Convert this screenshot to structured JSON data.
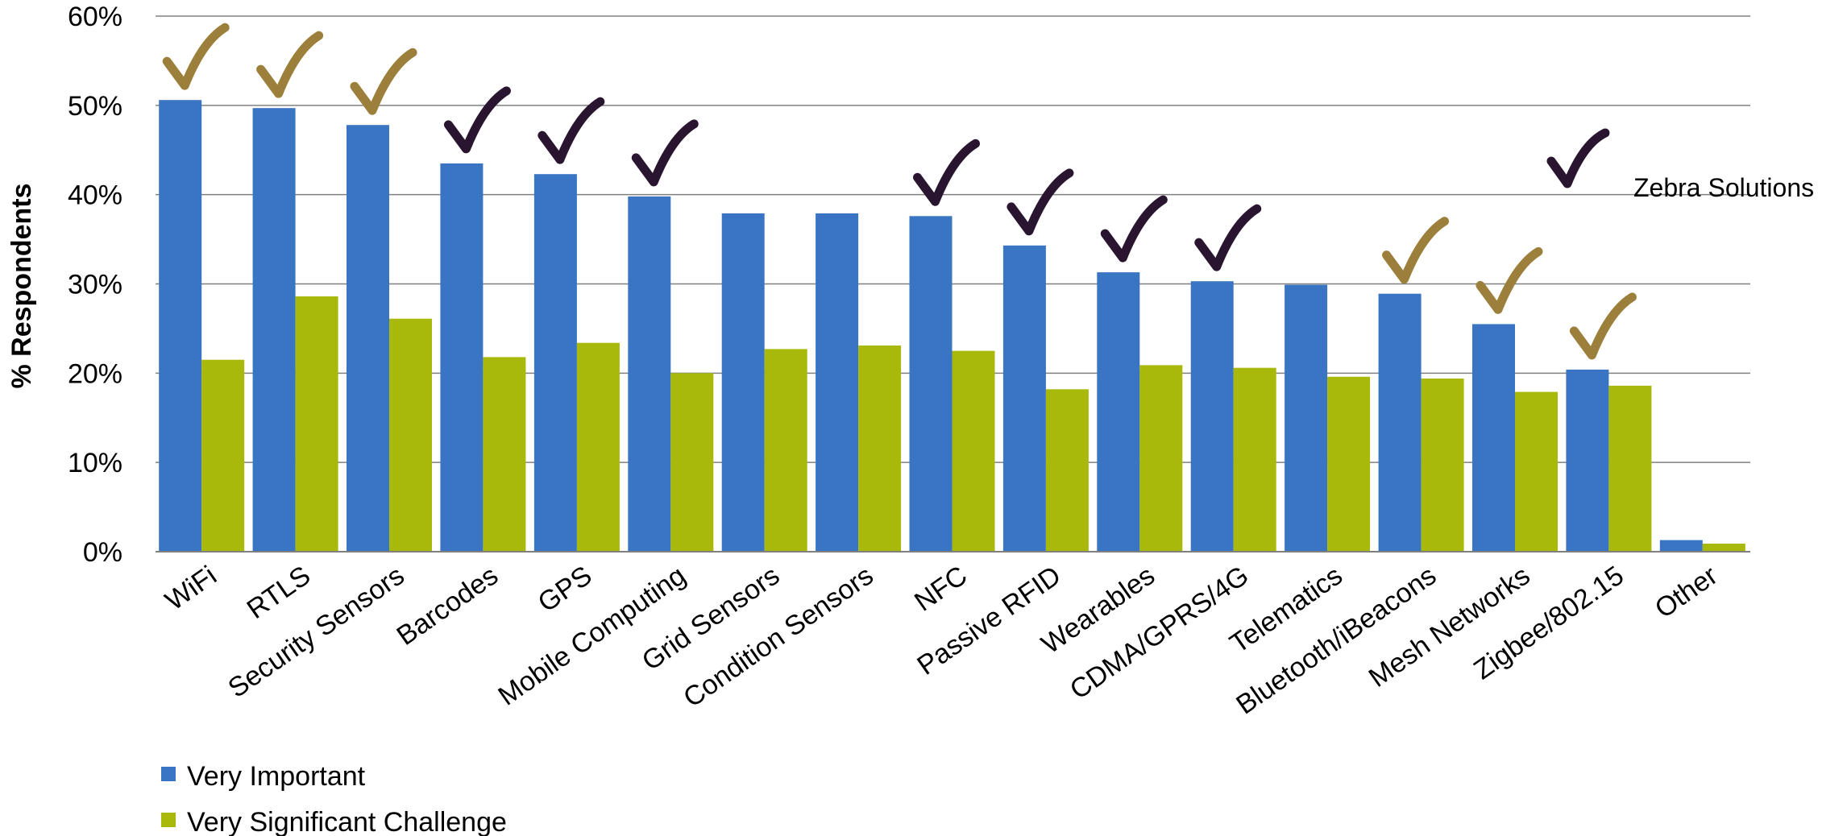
{
  "chart_data": {
    "type": "bar",
    "ylabel": "% Respondents",
    "ylim": [
      0,
      60
    ],
    "yticks": [
      "0%",
      "10%",
      "20%",
      "30%",
      "40%",
      "50%",
      "60%"
    ],
    "grid": true,
    "legend_placement": "bottom-left",
    "annotation": "Zebra Solutions",
    "categories": [
      "WiFi",
      "RTLS",
      "Security Sensors",
      "Barcodes",
      "GPS",
      "Mobile Computing",
      "Grid Sensors",
      "Condition Sensors",
      "NFC",
      "Passive RFID",
      "Wearables",
      "CDMA/GPRS/4G",
      "Telematics",
      "Bluetooth/iBeacons",
      "Mesh Networks",
      "Zigbee/802.15",
      "Other"
    ],
    "series": [
      {
        "name": "Very Important",
        "color": "#3A75C4",
        "values": [
          50.6,
          49.7,
          47.8,
          43.5,
          42.3,
          39.8,
          37.9,
          37.9,
          37.6,
          34.3,
          31.3,
          30.3,
          29.9,
          28.9,
          25.5,
          20.4,
          1.3
        ]
      },
      {
        "name": "Very Significant Challenge",
        "color": "#A9B90B",
        "values": [
          21.5,
          28.6,
          26.1,
          21.8,
          23.4,
          20.0,
          22.7,
          23.1,
          22.5,
          18.2,
          20.9,
          20.6,
          19.6,
          19.4,
          17.9,
          18.6,
          0.9
        ]
      }
    ],
    "checkmarks": [
      {
        "category": "WiFi",
        "color": "#9C7F3A"
      },
      {
        "category": "RTLS",
        "color": "#9C7F3A"
      },
      {
        "category": "Security Sensors",
        "color": "#9C7F3A"
      },
      {
        "category": "Barcodes",
        "color": "#2A1530"
      },
      {
        "category": "GPS",
        "color": "#2A1530"
      },
      {
        "category": "Mobile Computing",
        "color": "#2A1530"
      },
      {
        "category": "NFC",
        "color": "#2A1530"
      },
      {
        "category": "Passive RFID",
        "color": "#2A1530"
      },
      {
        "category": "Wearables",
        "color": "#2A1530"
      },
      {
        "category": "CDMA/GPRS/4G",
        "color": "#2A1530"
      },
      {
        "category": "Bluetooth/iBeacons",
        "color": "#9C7F3A"
      },
      {
        "category": "Mesh Networks",
        "color": "#9C7F3A"
      },
      {
        "category": "Zigbee/802.15",
        "color": "#9C7F3A"
      }
    ],
    "legend_check_color": "#2A1530"
  }
}
